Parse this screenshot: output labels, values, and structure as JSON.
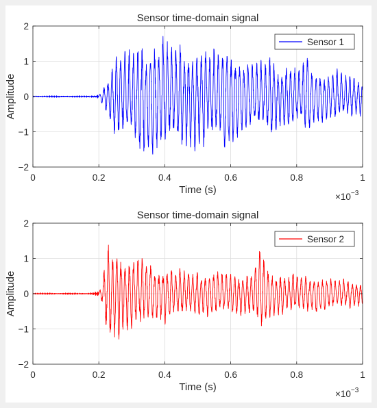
{
  "chart_data": [
    {
      "type": "line",
      "title": "Sensor time-domain signal",
      "xlabel": "Time (s)",
      "ylabel": "Amplitude",
      "x_exponent_label": "×10",
      "x_exponent_power": "−3",
      "xlim": [
        0,
        1
      ],
      "ylim": [
        -2,
        2
      ],
      "xticks": [
        "0",
        "0.2",
        "0.4",
        "0.6",
        "0.8",
        "1"
      ],
      "yticks": [
        "2",
        "1",
        "0",
        "−1",
        "−2"
      ],
      "grid": true,
      "legend_position": "top-right",
      "series": [
        {
          "name": "Sensor 1",
          "color": "#0000ff",
          "onset": 0.2,
          "peaks": [
            [
              0.223,
              0.45
            ],
            [
              0.232,
              0.55
            ],
            [
              0.245,
              1.0
            ],
            [
              0.258,
              1.2
            ],
            [
              0.27,
              1.15
            ],
            [
              0.283,
              1.1
            ],
            [
              0.296,
              1.2
            ],
            [
              0.31,
              1.2
            ],
            [
              0.32,
              1.4
            ],
            [
              0.333,
              1.6
            ],
            [
              0.345,
              1.2
            ],
            [
              0.358,
              1.5
            ],
            [
              0.37,
              1.5
            ],
            [
              0.383,
              1.25
            ],
            [
              0.395,
              1.7
            ],
            [
              0.408,
              1.35
            ],
            [
              0.42,
              1.2
            ],
            [
              0.433,
              1.25
            ],
            [
              0.446,
              1.6
            ],
            [
              0.458,
              1.15
            ],
            [
              0.47,
              1.4
            ],
            [
              0.483,
              1.25
            ],
            [
              0.496,
              1.45
            ],
            [
              0.508,
              1.2
            ],
            [
              0.52,
              1.45
            ],
            [
              0.533,
              1.05
            ],
            [
              0.546,
              1.3
            ],
            [
              0.558,
              1.1
            ],
            [
              0.57,
              1.05
            ],
            [
              0.583,
              1.45
            ],
            [
              0.596,
              1.3
            ],
            [
              0.608,
              1.15
            ],
            [
              0.62,
              1.1
            ],
            [
              0.633,
              0.95
            ],
            [
              0.646,
              1.0
            ],
            [
              0.658,
              0.9
            ],
            [
              0.67,
              0.8
            ],
            [
              0.683,
              0.95
            ],
            [
              0.696,
              0.85
            ],
            [
              0.708,
              0.85
            ],
            [
              0.72,
              1.1
            ],
            [
              0.733,
              0.95
            ],
            [
              0.746,
              0.8
            ],
            [
              0.758,
              0.7
            ],
            [
              0.77,
              0.9
            ],
            [
              0.783,
              0.8
            ],
            [
              0.796,
              0.75
            ],
            [
              0.808,
              0.7
            ],
            [
              0.82,
              0.85
            ],
            [
              0.833,
              1.1
            ],
            [
              0.846,
              0.7
            ],
            [
              0.858,
              0.65
            ],
            [
              0.87,
              0.75
            ],
            [
              0.883,
              0.6
            ],
            [
              0.896,
              0.6
            ],
            [
              0.908,
              0.6
            ],
            [
              0.92,
              0.75
            ],
            [
              0.933,
              0.6
            ],
            [
              0.946,
              0.55
            ],
            [
              0.958,
              0.55
            ],
            [
              0.97,
              0.6
            ],
            [
              0.983,
              0.45
            ],
            [
              0.996,
              0.5
            ]
          ]
        },
        {
          "name": "Sensor 2",
          "color": "#ff0000",
          "onset": 0.2,
          "peaks": [
            [
              0.21,
              0.3
            ],
            [
              0.218,
              0.7
            ],
            [
              0.226,
              1.3
            ],
            [
              0.234,
              1.3
            ],
            [
              0.242,
              1.0
            ],
            [
              0.25,
              1.2
            ],
            [
              0.258,
              1.1
            ],
            [
              0.266,
              1.25
            ],
            [
              0.274,
              0.85
            ],
            [
              0.283,
              1.0
            ],
            [
              0.292,
              0.9
            ],
            [
              0.3,
              0.95
            ],
            [
              0.31,
              0.85
            ],
            [
              0.32,
              0.9
            ],
            [
              0.33,
              1.0
            ],
            [
              0.34,
              0.8
            ],
            [
              0.35,
              0.7
            ],
            [
              0.36,
              0.85
            ],
            [
              0.37,
              0.6
            ],
            [
              0.38,
              0.7
            ],
            [
              0.39,
              0.65
            ],
            [
              0.4,
              0.8
            ],
            [
              0.41,
              0.6
            ],
            [
              0.42,
              0.7
            ],
            [
              0.43,
              0.55
            ],
            [
              0.44,
              0.6
            ],
            [
              0.45,
              0.75
            ],
            [
              0.46,
              0.55
            ],
            [
              0.47,
              0.6
            ],
            [
              0.48,
              0.5
            ],
            [
              0.49,
              0.55
            ],
            [
              0.5,
              0.65
            ],
            [
              0.51,
              0.5
            ],
            [
              0.52,
              0.55
            ],
            [
              0.53,
              0.6
            ],
            [
              0.54,
              0.5
            ],
            [
              0.55,
              0.55
            ],
            [
              0.56,
              0.6
            ],
            [
              0.57,
              0.5
            ],
            [
              0.58,
              0.55
            ],
            [
              0.59,
              0.5
            ],
            [
              0.6,
              0.6
            ],
            [
              0.61,
              0.55
            ],
            [
              0.62,
              0.5
            ],
            [
              0.63,
              0.55
            ],
            [
              0.64,
              0.5
            ],
            [
              0.65,
              0.6
            ],
            [
              0.66,
              0.5
            ],
            [
              0.67,
              0.6
            ],
            [
              0.68,
              0.85
            ],
            [
              0.69,
              1.2
            ],
            [
              0.7,
              0.9
            ],
            [
              0.71,
              0.7
            ],
            [
              0.72,
              0.6
            ],
            [
              0.73,
              0.55
            ],
            [
              0.74,
              0.5
            ],
            [
              0.75,
              0.6
            ],
            [
              0.76,
              0.5
            ],
            [
              0.77,
              0.45
            ],
            [
              0.78,
              0.5
            ],
            [
              0.79,
              0.55
            ],
            [
              0.8,
              0.45
            ],
            [
              0.81,
              0.5
            ],
            [
              0.82,
              0.45
            ],
            [
              0.83,
              0.5
            ],
            [
              0.84,
              0.4
            ],
            [
              0.85,
              0.45
            ],
            [
              0.86,
              0.5
            ],
            [
              0.87,
              0.4
            ],
            [
              0.88,
              0.45
            ],
            [
              0.89,
              0.4
            ],
            [
              0.9,
              0.35
            ],
            [
              0.91,
              0.45
            ],
            [
              0.92,
              0.4
            ],
            [
              0.93,
              0.35
            ],
            [
              0.94,
              0.4
            ],
            [
              0.95,
              0.35
            ],
            [
              0.96,
              0.4
            ],
            [
              0.97,
              0.3
            ],
            [
              0.98,
              0.35
            ],
            [
              0.99,
              0.3
            ],
            [
              1.0,
              0.3
            ]
          ]
        }
      ]
    }
  ],
  "panels": [
    {
      "series_index": 0
    },
    {
      "series_index": 1
    }
  ]
}
